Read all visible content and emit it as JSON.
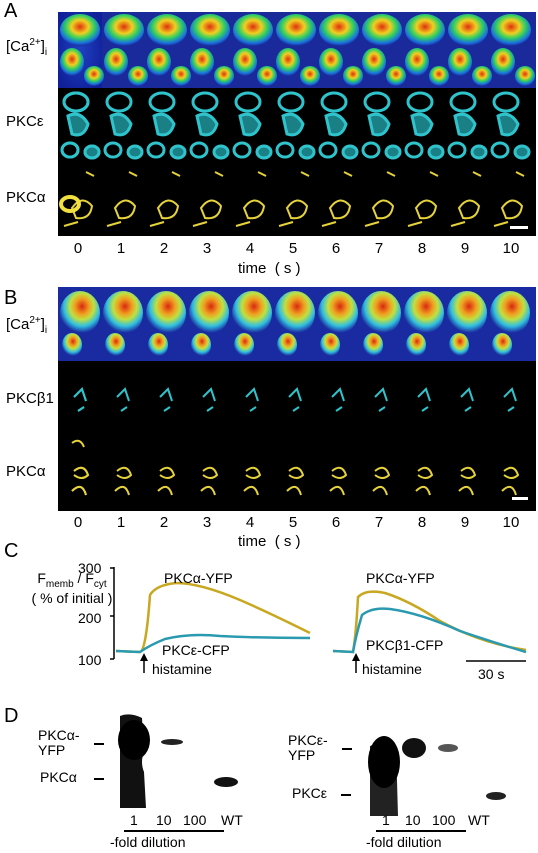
{
  "panels": {
    "A": {
      "letter": "A",
      "rows": [
        {
          "label_main": "[Ca",
          "label_sup": "2+",
          "label_close": "]",
          "label_sub": "i"
        },
        {
          "label": "PKCε"
        },
        {
          "label": "PKCα"
        }
      ],
      "ticks": [
        "0",
        "1",
        "2",
        "3",
        "4",
        "5",
        "6",
        "7",
        "8",
        "9",
        "10"
      ],
      "axis_label": "time",
      "axis_unit": "( s )"
    },
    "B": {
      "letter": "B",
      "rows": [
        {
          "label_main": "[Ca",
          "label_sup": "2+",
          "label_close": "]",
          "label_sub": "i"
        },
        {
          "label": "PKCβ1"
        },
        {
          "label": "PKCα"
        }
      ],
      "ticks": [
        "0",
        "1",
        "2",
        "3",
        "4",
        "5",
        "6",
        "7",
        "8",
        "9",
        "10"
      ],
      "axis_label": "time",
      "axis_unit": "( s )"
    },
    "C": {
      "letter": "C",
      "ylabel_main": "F",
      "ylabel_sub1": "memb",
      "ylabel_slash": " / F",
      "ylabel_sub2": "cyt",
      "ylabel_unit": "( % of initial )",
      "yticks": [
        "300",
        "200",
        "100"
      ],
      "left": {
        "series1": "PKCα-YFP",
        "series2": "PKCε-CFP",
        "stimulus": "histamine"
      },
      "right": {
        "series1": "PKCα-YFP",
        "series2": "PKCβ1-CFP",
        "stimulus": "histamine",
        "scale": "30 s"
      }
    },
    "D": {
      "letter": "D",
      "left": {
        "band1_a": "PKCα-",
        "band1_b": "YFP",
        "band2": "PKCα",
        "lanes": [
          "1",
          "10",
          "100",
          "WT"
        ],
        "dilution": "-fold dilution"
      },
      "right": {
        "band1_a": "PKCε-",
        "band1_b": "YFP",
        "band2": "PKCε",
        "lanes": [
          "1",
          "10",
          "100",
          "WT"
        ],
        "dilution": "-fold dilution"
      }
    }
  },
  "colors": {
    "yfp": "#c8a820",
    "cfp": "#2a9ab0",
    "cyan_cell": "#2fc4cc",
    "yellow_cell": "#e6d23a"
  }
}
